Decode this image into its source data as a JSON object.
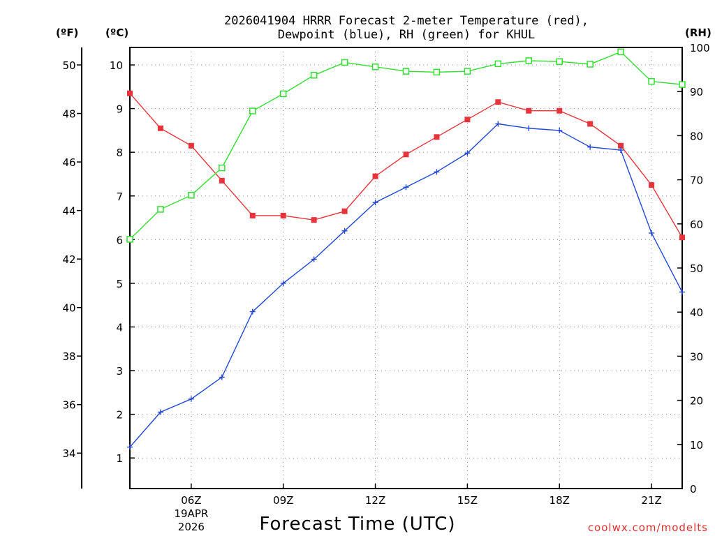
{
  "chart_data": {
    "type": "line",
    "title_lines": [
      "2026041904 HRRR Forecast 2-meter Temperature (red),",
      "Dewpoint (blue), RH (green) for KHUL"
    ],
    "xlabel": "Forecast Time (UTC)",
    "credit": "coolwx.com/modelts",
    "units": {
      "fahrenheit": "(ºF)",
      "celsius": "(ºC)",
      "rh": "(RH)"
    },
    "x_hours": [
      4,
      5,
      6,
      7,
      8,
      9,
      10,
      11,
      12,
      13,
      14,
      15,
      16,
      17,
      18,
      19,
      20,
      21,
      22
    ],
    "xlim": [
      4,
      22
    ],
    "x_ticks": [
      {
        "hour": 6,
        "label": "06Z",
        "sub": [
          "19APR",
          "2026"
        ]
      },
      {
        "hour": 9,
        "label": "09Z"
      },
      {
        "hour": 12,
        "label": "12Z"
      },
      {
        "hour": 15,
        "label": "15Z"
      },
      {
        "hour": 18,
        "label": "18Z"
      },
      {
        "hour": 21,
        "label": "21Z"
      }
    ],
    "celsius_axis": {
      "min": 0.3,
      "max": 10.4,
      "ticks": [
        1,
        2,
        3,
        4,
        5,
        6,
        7,
        8,
        9,
        10
      ]
    },
    "fahrenheit_axis": {
      "ticks": [
        34,
        36,
        38,
        40,
        42,
        44,
        46,
        48,
        50
      ]
    },
    "rh_axis": {
      "min": 0,
      "max": 100,
      "ticks": [
        0,
        10,
        20,
        30,
        40,
        50,
        60,
        70,
        80,
        90,
        100
      ]
    },
    "series": [
      {
        "name": "Temperature",
        "axis": "celsius",
        "color": "#e8333a",
        "marker": "filled-square",
        "values": [
          9.35,
          8.55,
          8.15,
          7.35,
          6.55,
          6.55,
          6.45,
          6.65,
          7.45,
          7.95,
          8.35,
          8.75,
          9.15,
          8.95,
          8.95,
          8.65,
          8.15,
          7.25,
          6.05
        ]
      },
      {
        "name": "Dewpoint",
        "axis": "celsius",
        "color": "#2346d8",
        "marker": "plus",
        "values": [
          1.25,
          2.05,
          2.35,
          2.85,
          4.35,
          5.0,
          5.55,
          6.2,
          6.85,
          7.2,
          7.55,
          7.98,
          8.65,
          8.55,
          8.5,
          8.12,
          8.05,
          6.15,
          4.8
        ]
      },
      {
        "name": "RH",
        "axis": "rh",
        "color": "#33dd33",
        "marker": "open-square",
        "values": [
          56.5,
          63.3,
          66.5,
          72.7,
          85.6,
          89.5,
          93.7,
          96.6,
          95.6,
          94.6,
          94.4,
          94.6,
          96.3,
          97.0,
          96.8,
          96.2,
          99.0,
          92.3,
          91.6
        ]
      }
    ]
  }
}
